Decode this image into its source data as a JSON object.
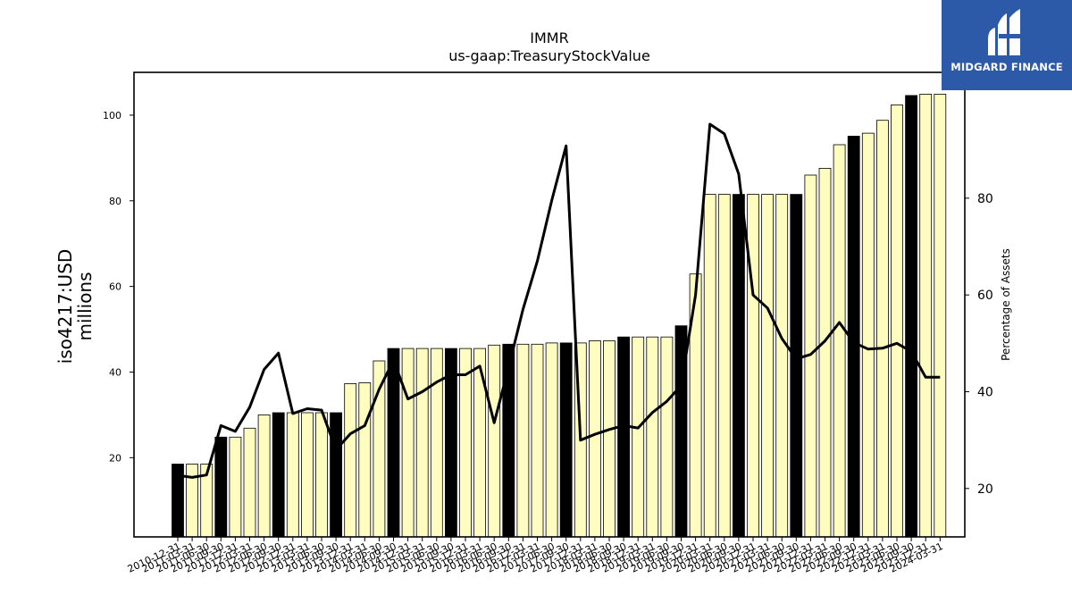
{
  "chart_data": {
    "type": "bar",
    "title": "IMMR",
    "subtitle": "us-gaap:TreasuryStockValue",
    "ylabel": "iso4217:USD\nmillions",
    "y2label": "Percentage of Assets",
    "ylim": [
      1.5,
      110
    ],
    "y2lim": [
      10,
      106
    ],
    "yticks": [
      20,
      40,
      60,
      80,
      100
    ],
    "y2ticks": [
      20,
      40,
      60,
      80
    ],
    "categories": [
      "2010-12-31",
      "2011-03-31",
      "2011-06-30",
      "2011-09-30",
      "2011-12-31",
      "2012-03-31",
      "2012-06-30",
      "2012-09-30",
      "2012-12-31",
      "2013-03-31",
      "2013-06-30",
      "2013-09-30",
      "2013-12-31",
      "2014-03-31",
      "2014-06-30",
      "2014-09-30",
      "2014-12-31",
      "2015-03-31",
      "2015-06-30",
      "2015-09-30",
      "2015-12-31",
      "2016-03-31",
      "2016-06-30",
      "2016-09-30",
      "2016-12-31",
      "2017-03-31",
      "2017-06-30",
      "2017-09-30",
      "2017-12-31",
      "2018-03-31",
      "2018-06-30",
      "2018-09-30",
      "2018-12-31",
      "2019-03-31",
      "2019-06-30",
      "2019-09-30",
      "2019-12-31",
      "2020-03-31",
      "2020-06-30",
      "2020-09-30",
      "2020-12-31",
      "2021-03-31",
      "2021-06-30",
      "2021-09-30",
      "2021-12-31",
      "2022-03-31",
      "2022-06-30",
      "2022-09-30",
      "2022-12-31",
      "2023-03-31",
      "2023-06-30",
      "2023-09-30",
      "2023-12-31",
      "2024-03-31"
    ],
    "series": [
      {
        "kind": "bar",
        "values": [
          18.5,
          18.5,
          18.5,
          24.8,
          24.8,
          26.9,
          30.0,
          30.5,
          30.5,
          30.5,
          30.5,
          30.5,
          37.3,
          37.5,
          42.6,
          45.5,
          45.5,
          45.5,
          45.5,
          45.5,
          45.5,
          45.5,
          46.3,
          46.5,
          46.5,
          46.5,
          46.8,
          46.8,
          46.8,
          47.3,
          47.3,
          48.2,
          48.2,
          48.2,
          48.2,
          50.8,
          62.9,
          81.5,
          81.5,
          81.5,
          81.5,
          81.5,
          81.5,
          81.5,
          86.0,
          87.6,
          93.1,
          95.1,
          95.8,
          98.8,
          102.4,
          104.6,
          104.9,
          104.9
        ],
        "fill": "#fffcc0",
        "highlight_fill": "#000000",
        "highlight_indices": [
          0,
          3,
          7,
          11,
          15,
          19,
          23,
          27,
          31,
          35,
          39,
          43,
          47,
          51
        ]
      },
      {
        "kind": "line",
        "axis": "right",
        "name": "Percentage of Assets",
        "values": [
          22.7,
          22.3,
          22.8,
          33.0,
          31.8,
          36.8,
          44.6,
          48.0,
          35.5,
          36.5,
          36.2,
          28.0,
          31.3,
          33.0,
          40.5,
          46.5,
          38.5,
          40.0,
          42.0,
          43.5,
          43.5,
          45.3,
          33.6,
          45.0,
          57.0,
          67.0,
          79.5,
          90.8,
          30.0,
          31.2,
          32.2,
          33.0,
          32.5,
          35.7,
          38.0,
          41.3,
          60.0,
          95.3,
          93.3,
          85.0,
          60.0,
          57.3,
          51.0,
          46.8,
          47.7,
          50.5,
          54.3,
          50.2,
          48.8,
          49.0,
          50.0,
          48.3,
          43.0,
          43.0
        ],
        "color": "#000000"
      }
    ]
  },
  "logo": {
    "name": "MIDGARD FINANCE",
    "background": "#2d5aa8"
  }
}
